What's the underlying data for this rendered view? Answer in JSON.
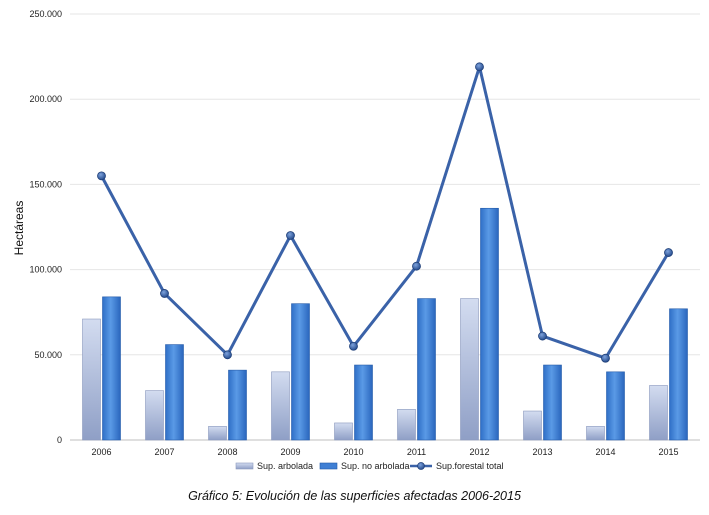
{
  "chart_data": {
    "type": "bar",
    "title": "",
    "xlabel": "",
    "ylabel": "Hectáreas",
    "ylim": [
      0,
      250000
    ],
    "yticks": [
      0,
      50000,
      100000,
      150000,
      200000,
      250000
    ],
    "ytick_labels": [
      "0",
      "50.000",
      "100.000",
      "150.000",
      "200.000",
      "250.000"
    ],
    "categories": [
      "2006",
      "2007",
      "2008",
      "2009",
      "2010",
      "2011",
      "2012",
      "2013",
      "2014",
      "2015"
    ],
    "grid": true,
    "legend_position": "bottom",
    "series": [
      {
        "name": "Sup. arbolada",
        "kind": "bar",
        "color": "#b4c2e3",
        "values": [
          71000,
          29000,
          8000,
          40000,
          10000,
          18000,
          83000,
          17000,
          8000,
          32000
        ]
      },
      {
        "name": "Sup. no arbolada",
        "kind": "bar",
        "color": "#4a86d8",
        "values": [
          84000,
          56000,
          41000,
          80000,
          44000,
          83000,
          136000,
          44000,
          40000,
          77000
        ]
      },
      {
        "name": "Sup.forestal total",
        "kind": "line",
        "color": "#3a62a8",
        "values": [
          155000,
          86000,
          50000,
          120000,
          55000,
          102000,
          219000,
          61000,
          48000,
          110000
        ]
      }
    ]
  },
  "caption": "Gráfico 5: Evolución de las superficies afectadas 2006-2015"
}
